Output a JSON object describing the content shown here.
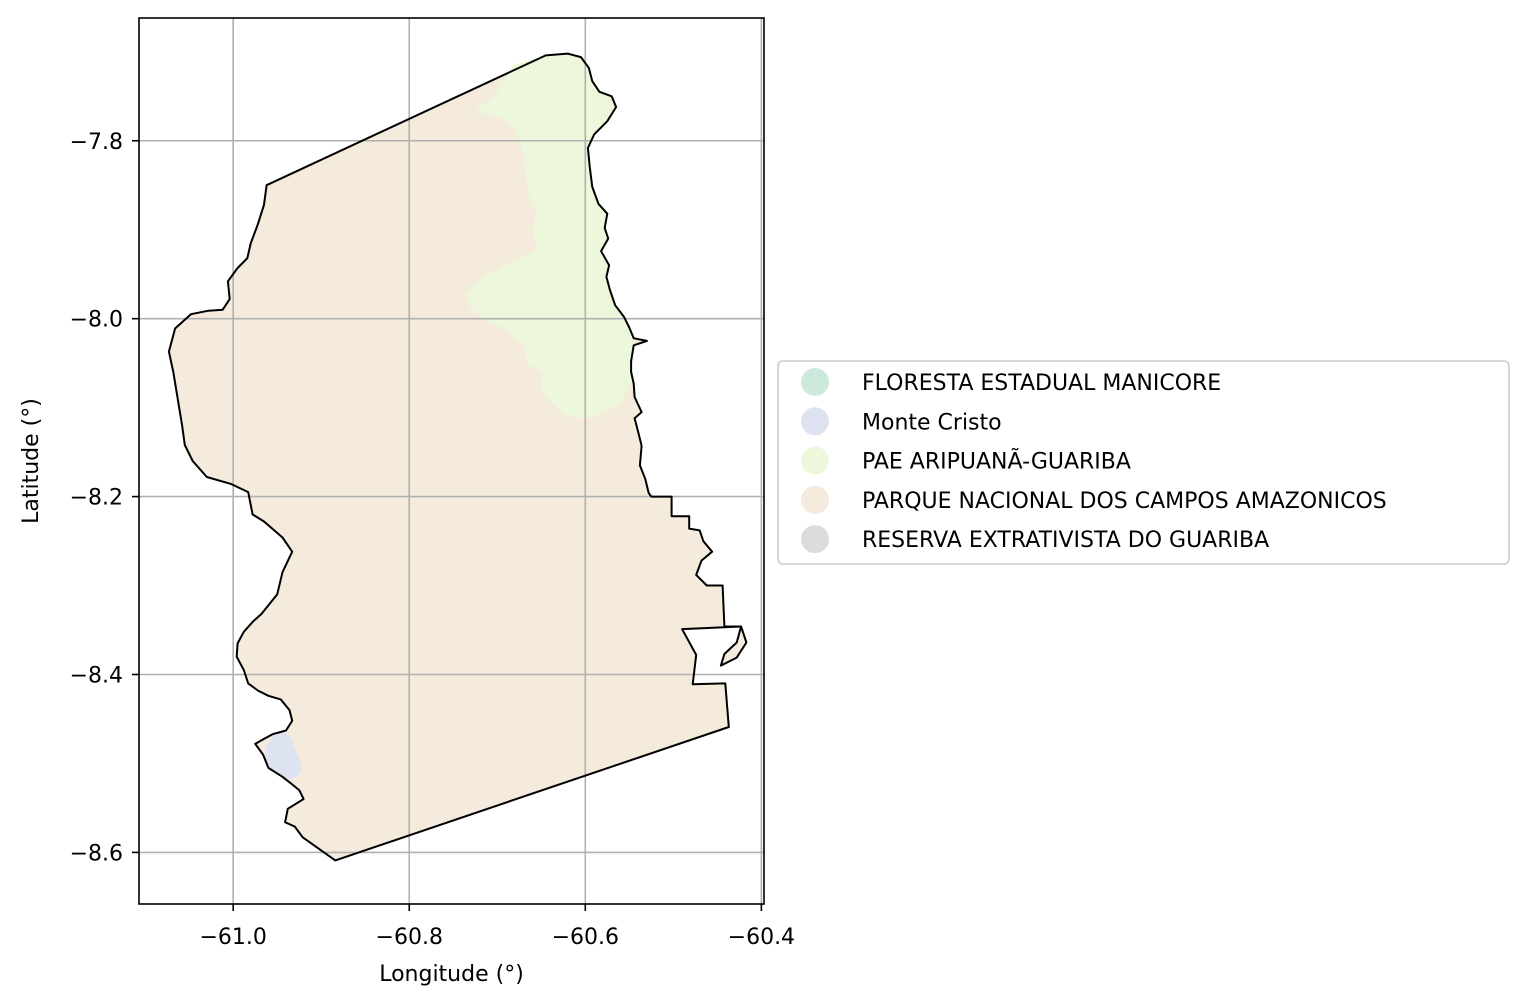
{
  "chart_data": {
    "type": "map",
    "xlabel": "Longitude (°)",
    "ylabel": "Latitude (°)",
    "xlim": [
      -61.107,
      -60.397
    ],
    "ylim": [
      -8.658,
      -7.662
    ],
    "grid": true,
    "x_ticks": [
      {
        "value": -61.0,
        "label": "−61.0"
      },
      {
        "value": -60.8,
        "label": "−60.8"
      },
      {
        "value": -60.6,
        "label": "−60.6"
      },
      {
        "value": -60.4,
        "label": "−60.4"
      }
    ],
    "y_ticks": [
      {
        "value": -7.8,
        "label": "−7.8"
      },
      {
        "value": -8.0,
        "label": "−8.0"
      },
      {
        "value": -8.2,
        "label": "−8.2"
      },
      {
        "value": -8.4,
        "label": "−8.4"
      },
      {
        "value": -8.6,
        "label": "−8.6"
      }
    ],
    "legend_position": "right",
    "legend": [
      {
        "label": "FLORESTA ESTADUAL MANICORE",
        "color": "#cce9dc"
      },
      {
        "label": "Monte Cristo",
        "color": "#dde3f1"
      },
      {
        "label": "PAE ARIPUANÃ-GUARIBA",
        "color": "#edf7dc"
      },
      {
        "label": "PARQUE NACIONAL DOS CAMPOS AMAZONICOS",
        "color": "#f5ebdc"
      },
      {
        "label": "RESERVA EXTRATIVISTA DO GUARIBA",
        "color": "#dcdcdc"
      }
    ],
    "regions": [
      {
        "name": "PARQUE NACIONAL DOS CAMPOS AMAZONICOS",
        "color": "#f5ebdc",
        "coords": [
          [
            -61.066,
            -8.011
          ],
          [
            -61.059,
            -8.003
          ],
          [
            -61.04,
            -7.993
          ],
          [
            -61.017,
            -7.991
          ],
          [
            -61.004,
            -7.978
          ],
          [
            -61.008,
            -7.958
          ],
          [
            -61.0,
            -7.939
          ],
          [
            -60.984,
            -7.93
          ],
          [
            -60.976,
            -7.915
          ],
          [
            -60.971,
            -7.894
          ],
          [
            -60.964,
            -7.87
          ],
          [
            -60.962,
            -7.851
          ],
          [
            -60.7,
            -7.715
          ],
          [
            -60.682,
            -7.715
          ],
          [
            -60.66,
            -7.748
          ],
          [
            -60.65,
            -7.79
          ],
          [
            -60.66,
            -7.85
          ],
          [
            -60.637,
            -7.88
          ],
          [
            -60.63,
            -7.896
          ],
          [
            -60.6,
            -7.903
          ],
          [
            -60.578,
            -7.924
          ],
          [
            -60.545,
            -7.933
          ],
          [
            -60.521,
            -7.935
          ],
          [
            -60.51,
            -7.948
          ],
          [
            -60.502,
            -7.965
          ],
          [
            -60.49,
            -7.974
          ],
          [
            -60.48,
            -7.983
          ],
          [
            -60.465,
            -7.988
          ],
          [
            -60.463,
            -8.0
          ],
          [
            -60.46,
            -8.022
          ],
          [
            -60.462,
            -8.05
          ],
          [
            -60.475,
            -8.063
          ],
          [
            -60.49,
            -8.073
          ],
          [
            -60.505,
            -8.08
          ],
          [
            -60.534,
            -8.094
          ],
          [
            -60.546,
            -8.104
          ],
          [
            -60.561,
            -8.116
          ],
          [
            -60.588,
            -8.118
          ],
          [
            -60.618,
            -8.117
          ],
          [
            -60.635,
            -8.116
          ],
          [
            -60.652,
            -8.12
          ],
          [
            -60.668,
            -8.118
          ],
          [
            -60.671,
            -8.121
          ],
          [
            -60.68,
            -8.112
          ],
          [
            -60.705,
            -8.11
          ],
          [
            -60.715,
            -8.1
          ],
          [
            -60.742,
            -8.093
          ],
          [
            -60.762,
            -8.075
          ],
          [
            -60.794,
            -8.06
          ],
          [
            -60.81,
            -8.05
          ],
          [
            -60.816,
            -8.034
          ],
          [
            -60.83,
            -8.024
          ],
          [
            -60.835,
            -8.008
          ],
          [
            -60.828,
            -7.992
          ],
          [
            -60.828,
            -7.972
          ],
          [
            -60.838,
            -7.955
          ],
          [
            -60.832,
            -7.934
          ],
          [
            -60.818,
            -7.918
          ],
          [
            -60.8,
            -7.909
          ],
          [
            -60.787,
            -7.897
          ],
          [
            -60.785,
            -7.885
          ],
          [
            -60.774,
            -7.87
          ],
          [
            -60.769,
            -7.85
          ],
          [
            -60.772,
            -7.82
          ],
          [
            -60.766,
            -7.8
          ],
          [
            -60.74,
            -7.77
          ],
          [
            -60.718,
            -7.75
          ],
          [
            -60.682,
            -7.715
          ],
          [
            -60.7,
            -7.715
          ]
        ]
      }
    ],
    "outline": [
      [
        -61.066,
        -8.011
      ],
      [
        -61.048,
        -7.995
      ],
      [
        -61.028,
        -7.991
      ],
      [
        -61.012,
        -7.99
      ],
      [
        -61.004,
        -7.978
      ],
      [
        -61.006,
        -7.958
      ],
      [
        -60.995,
        -7.943
      ],
      [
        -60.984,
        -7.932
      ],
      [
        -60.98,
        -7.915
      ],
      [
        -60.972,
        -7.894
      ],
      [
        -60.965,
        -7.872
      ],
      [
        -60.962,
        -7.85
      ],
      [
        -60.645,
        -7.704
      ],
      [
        -60.62,
        -7.702
      ],
      [
        -60.605,
        -7.706
      ],
      [
        -60.596,
        -7.718
      ],
      [
        -60.592,
        -7.733
      ],
      [
        -60.584,
        -7.745
      ],
      [
        -60.57,
        -7.75
      ],
      [
        -60.565,
        -7.762
      ],
      [
        -60.575,
        -7.778
      ],
      [
        -60.59,
        -7.793
      ],
      [
        -60.597,
        -7.808
      ],
      [
        -60.595,
        -7.829
      ],
      [
        -60.592,
        -7.852
      ],
      [
        -60.585,
        -7.871
      ],
      [
        -60.575,
        -7.882
      ],
      [
        -60.578,
        -7.898
      ],
      [
        -60.574,
        -7.91
      ],
      [
        -60.582,
        -7.924
      ],
      [
        -60.573,
        -7.94
      ],
      [
        -60.576,
        -7.953
      ],
      [
        -60.572,
        -7.968
      ],
      [
        -60.566,
        -7.985
      ],
      [
        -60.556,
        -7.998
      ],
      [
        -60.55,
        -8.01
      ],
      [
        -60.545,
        -8.022
      ],
      [
        -60.53,
        -8.025
      ],
      [
        -60.545,
        -8.03
      ],
      [
        -60.548,
        -8.048
      ],
      [
        -60.548,
        -8.06
      ],
      [
        -60.545,
        -8.073
      ],
      [
        -60.544,
        -8.088
      ],
      [
        -60.536,
        -8.105
      ],
      [
        -60.544,
        -8.112
      ],
      [
        -60.54,
        -8.127
      ],
      [
        -60.536,
        -8.143
      ],
      [
        -60.538,
        -8.165
      ],
      [
        -60.532,
        -8.18
      ],
      [
        -60.528,
        -8.196
      ],
      [
        -60.525,
        -8.2
      ],
      [
        -60.502,
        -8.2
      ],
      [
        -60.502,
        -8.222
      ],
      [
        -60.482,
        -8.222
      ],
      [
        -60.482,
        -8.236
      ],
      [
        -60.47,
        -8.238
      ],
      [
        -60.466,
        -8.25
      ],
      [
        -60.456,
        -8.262
      ],
      [
        -60.468,
        -8.272
      ],
      [
        -60.474,
        -8.288
      ],
      [
        -60.462,
        -8.3
      ],
      [
        -60.444,
        -8.3
      ],
      [
        -60.442,
        -8.346
      ],
      [
        -60.423,
        -8.346
      ],
      [
        -60.417,
        -8.364
      ],
      [
        -60.428,
        -8.381
      ],
      [
        -60.446,
        -8.39
      ],
      [
        -60.442,
        -8.377
      ],
      [
        -60.428,
        -8.364
      ],
      [
        -60.423,
        -8.346
      ],
      [
        -60.49,
        -8.349
      ],
      [
        -60.474,
        -8.378
      ],
      [
        -60.478,
        -8.411
      ],
      [
        -60.441,
        -8.41
      ],
      [
        -60.437,
        -8.459
      ],
      [
        -60.884,
        -8.609
      ],
      [
        -60.921,
        -8.583
      ],
      [
        -60.93,
        -8.571
      ],
      [
        -60.941,
        -8.566
      ],
      [
        -60.938,
        -8.551
      ],
      [
        -60.92,
        -8.54
      ],
      [
        -60.925,
        -8.53
      ],
      [
        -60.935,
        -8.522
      ],
      [
        -60.944,
        -8.515
      ],
      [
        -60.96,
        -8.505
      ],
      [
        -60.966,
        -8.49
      ],
      [
        -60.975,
        -8.478
      ],
      [
        -60.966,
        -8.473
      ],
      [
        -60.955,
        -8.467
      ],
      [
        -60.94,
        -8.463
      ],
      [
        -60.933,
        -8.452
      ],
      [
        -60.936,
        -8.44
      ],
      [
        -60.946,
        -8.428
      ],
      [
        -60.96,
        -8.424
      ],
      [
        -60.972,
        -8.418
      ],
      [
        -60.983,
        -8.41
      ],
      [
        -60.988,
        -8.395
      ],
      [
        -60.996,
        -8.38
      ],
      [
        -60.995,
        -8.365
      ],
      [
        -60.988,
        -8.352
      ],
      [
        -60.977,
        -8.34
      ],
      [
        -60.968,
        -8.332
      ],
      [
        -60.95,
        -8.31
      ],
      [
        -60.944,
        -8.285
      ],
      [
        -60.933,
        -8.262
      ],
      [
        -60.944,
        -8.246
      ],
      [
        -60.965,
        -8.228
      ],
      [
        -60.978,
        -8.22
      ],
      [
        -60.983,
        -8.195
      ],
      [
        -61.002,
        -8.186
      ],
      [
        -61.03,
        -8.178
      ],
      [
        -61.046,
        -8.16
      ],
      [
        -61.055,
        -8.142
      ],
      [
        -61.058,
        -8.12
      ],
      [
        -61.063,
        -8.09
      ],
      [
        -61.068,
        -8.06
      ],
      [
        -61.073,
        -8.037
      ],
      [
        -61.066,
        -8.011
      ]
    ]
  }
}
